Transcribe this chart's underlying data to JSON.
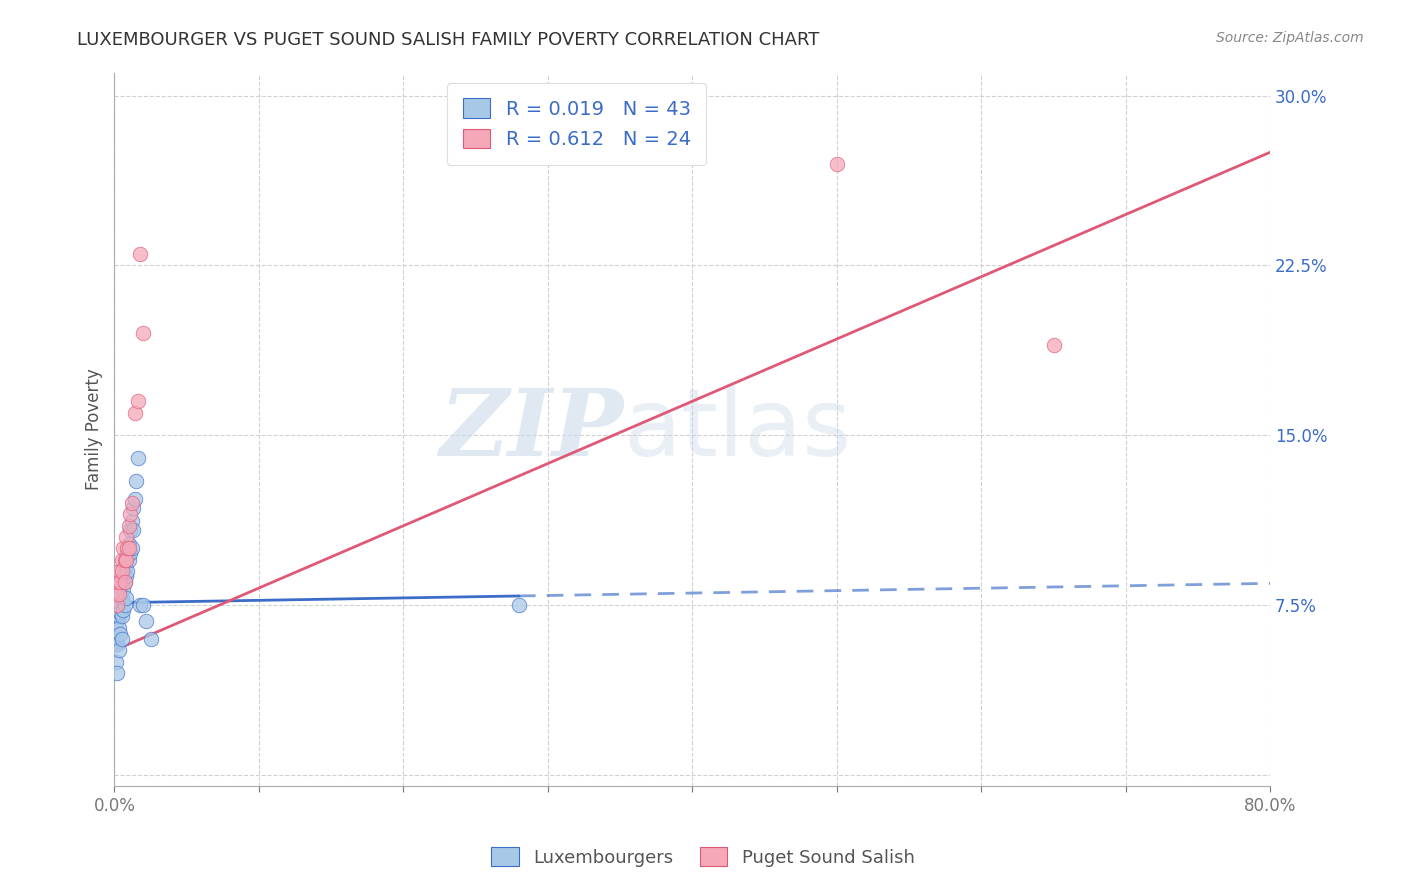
{
  "title": "LUXEMBOURGER VS PUGET SOUND SALISH FAMILY POVERTY CORRELATION CHART",
  "source": "Source: ZipAtlas.com",
  "ylabel": "Family Poverty",
  "xlim": [
    0,
    0.8
  ],
  "ylim": [
    -0.005,
    0.31
  ],
  "xticks": [
    0.0,
    0.1,
    0.2,
    0.3,
    0.4,
    0.5,
    0.6,
    0.7,
    0.8
  ],
  "xticklabels": [
    "0.0%",
    "",
    "",
    "",
    "",
    "",
    "",
    "",
    "80.0%"
  ],
  "yticks": [
    0.0,
    0.075,
    0.15,
    0.225,
    0.3
  ],
  "yticklabels": [
    "",
    "7.5%",
    "15.0%",
    "22.5%",
    "30.0%"
  ],
  "legend1_R": "0.019",
  "legend1_N": "43",
  "legend2_R": "0.612",
  "legend2_N": "24",
  "blue_color": "#A8C8E8",
  "pink_color": "#F4A8B8",
  "blue_line_color": "#3B6CC8",
  "pink_line_color": "#E05878",
  "grid_color": "#CCCCCC",
  "watermark_zip": "ZIP",
  "watermark_atlas": "atlas",
  "luxembourger_x": [
    0.001,
    0.001,
    0.002,
    0.002,
    0.002,
    0.003,
    0.003,
    0.003,
    0.003,
    0.004,
    0.004,
    0.004,
    0.005,
    0.005,
    0.005,
    0.005,
    0.006,
    0.006,
    0.006,
    0.007,
    0.007,
    0.007,
    0.008,
    0.008,
    0.008,
    0.009,
    0.009,
    0.01,
    0.01,
    0.011,
    0.011,
    0.012,
    0.012,
    0.013,
    0.013,
    0.014,
    0.015,
    0.016,
    0.018,
    0.02,
    0.022,
    0.025,
    0.28
  ],
  "luxembourger_y": [
    0.06,
    0.05,
    0.068,
    0.058,
    0.045,
    0.075,
    0.07,
    0.065,
    0.055,
    0.08,
    0.072,
    0.062,
    0.085,
    0.078,
    0.07,
    0.06,
    0.088,
    0.082,
    0.073,
    0.092,
    0.085,
    0.075,
    0.095,
    0.088,
    0.078,
    0.098,
    0.09,
    0.102,
    0.095,
    0.108,
    0.098,
    0.112,
    0.1,
    0.118,
    0.108,
    0.122,
    0.13,
    0.14,
    0.075,
    0.075,
    0.068,
    0.06,
    0.075
  ],
  "puget_x": [
    0.001,
    0.002,
    0.002,
    0.003,
    0.003,
    0.004,
    0.005,
    0.005,
    0.006,
    0.007,
    0.007,
    0.008,
    0.008,
    0.009,
    0.01,
    0.01,
    0.011,
    0.012,
    0.014,
    0.016,
    0.018,
    0.02,
    0.5,
    0.65
  ],
  "puget_y": [
    0.08,
    0.085,
    0.075,
    0.09,
    0.08,
    0.085,
    0.095,
    0.09,
    0.1,
    0.095,
    0.085,
    0.105,
    0.095,
    0.1,
    0.11,
    0.1,
    0.115,
    0.12,
    0.16,
    0.165,
    0.23,
    0.195,
    0.27,
    0.19
  ],
  "blue_line_x0": 0.0,
  "blue_line_x1": 0.28,
  "blue_line_y0": 0.076,
  "blue_line_y1": 0.079,
  "pink_line_x0": 0.0,
  "pink_line_x1": 0.8,
  "pink_line_y0": 0.055,
  "pink_line_y1": 0.275
}
